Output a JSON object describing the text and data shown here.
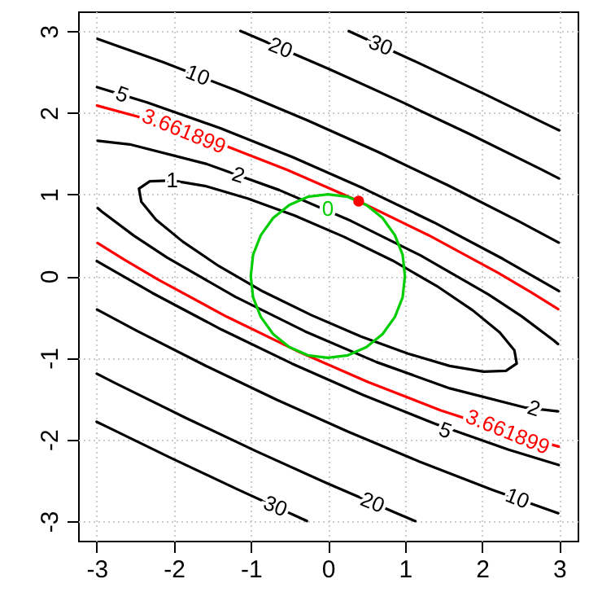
{
  "chart_data": {
    "type": "line",
    "xlim": [
      -3.24,
      3.24
    ],
    "ylim": [
      -3.24,
      3.24
    ],
    "xticks": [
      -3,
      -2,
      -1,
      0,
      1,
      2,
      3
    ],
    "yticks": [
      -3,
      -2,
      -1,
      0,
      1,
      2,
      3
    ],
    "grid": true,
    "series": [
      {
        "name": "30",
        "color": "#000000",
        "x": [
          0.272,
          1.145,
          2.058,
          2.876,
          3.0
        ],
        "values": [
          2.998,
          2.623,
          2.217,
          1.841,
          1.784
        ]
      },
      {
        "name": "30",
        "color": "#000000",
        "x": [
          -0.272,
          -1.145,
          -2.058,
          -2.876,
          -3.0
        ],
        "values": [
          -2.998,
          -2.623,
          -2.217,
          -1.841,
          -1.784
        ]
      },
      {
        "name": "20",
        "color": "#000000",
        "x": [
          -1.135,
          -0.911,
          0.015,
          0.935,
          1.848,
          2.755,
          2.998
        ],
        "values": [
          3.0,
          2.912,
          2.534,
          2.142,
          1.734,
          1.312,
          1.195
        ]
      },
      {
        "name": "20",
        "color": "#000000",
        "x": [
          1.135,
          0.911,
          -0.015,
          -0.935,
          -1.848,
          -2.755,
          -2.998
        ],
        "values": [
          -3.0,
          -2.912,
          -2.534,
          -2.142,
          -1.734,
          -1.312,
          -1.195
        ]
      },
      {
        "name": "10",
        "color": "#000000",
        "x": [
          -2.988,
          -2.132,
          -1.191,
          -0.26,
          0.661,
          1.573,
          2.475,
          2.994
        ],
        "values": [
          2.904,
          2.616,
          2.272,
          1.904,
          1.515,
          1.104,
          0.672,
          0.41
        ]
      },
      {
        "name": "10",
        "color": "#000000",
        "x": [
          2.988,
          2.132,
          1.191,
          0.26,
          -0.661,
          -1.573,
          -2.475,
          -2.994
        ],
        "values": [
          -2.904,
          -2.616,
          -2.272,
          -1.904,
          -1.515,
          -1.104,
          -0.672,
          -0.41
        ]
      },
      {
        "name": "5",
        "color": "#000000",
        "x": [
          -2.995,
          -2.346,
          -1.393,
          -0.456,
          0.467,
          1.378,
          2.273,
          2.892,
          2.997
        ],
        "values": [
          2.313,
          2.126,
          1.809,
          1.456,
          1.071,
          0.656,
          0.209,
          -0.125,
          -0.184
        ]
      },
      {
        "name": "5",
        "color": "#000000",
        "x": [
          2.995,
          2.346,
          1.393,
          0.456,
          -0.467,
          -1.378,
          -2.273,
          -2.892,
          -2.997
        ],
        "values": [
          -2.313,
          -2.126,
          -1.809,
          -1.456,
          -1.071,
          -0.656,
          -0.209,
          0.125,
          0.184
        ]
      },
      {
        "name": "3.661899",
        "color": "#ff0000",
        "x": [
          -2.995,
          -2.426,
          -1.465,
          -0.524,
          0.4,
          1.309,
          2.201,
          2.64,
          2.988
        ],
        "values": [
          2.087,
          1.942,
          1.644,
          1.299,
          0.9165,
          0.499,
          0.044,
          -0.2,
          -0.405
        ]
      },
      {
        "name": "3.661899",
        "color": "#ff0000",
        "x": [
          2.995,
          2.426,
          1.465,
          0.524,
          -0.4,
          -1.309,
          -2.201,
          -2.64,
          -2.988
        ],
        "values": [
          -2.087,
          -1.942,
          -1.644,
          -1.299,
          -0.9165,
          -0.499,
          -0.044,
          0.2,
          0.405
        ]
      },
      {
        "name": "2",
        "color": "#000000",
        "x": [
          -2.987,
          -2.57,
          -1.582,
          -0.631,
          0.296,
          1.202,
          2.084,
          2.513,
          2.93,
          2.986
        ],
        "values": [
          1.656,
          1.612,
          1.375,
          1.053,
          0.677,
          0.253,
          -0.225,
          -0.492,
          -0.788,
          -0.833
        ]
      },
      {
        "name": "2",
        "color": "#000000",
        "x": [
          2.987,
          2.57,
          1.582,
          0.631,
          -0.296,
          -1.202,
          -2.084,
          -2.513,
          -2.93,
          -2.986
        ],
        "values": [
          -1.656,
          -1.612,
          -1.375,
          -1.053,
          -0.677,
          -0.253,
          0.225,
          0.492,
          0.788,
          0.833
        ]
      },
      {
        "name": "1",
        "color": "#000000",
        "x": [
          -2.45,
          -2.31,
          -2.02,
          -1.58,
          -1.04,
          -0.43,
          0.21,
          0.84,
          1.41,
          1.88,
          2.23,
          2.42,
          2.45,
          null,
          -2.45,
          -2.42,
          -2.23,
          -1.88,
          -1.41,
          -0.84,
          -0.21,
          0.43,
          1.04,
          1.58,
          2.02,
          2.31,
          2.45
        ],
        "values": [
          1.07,
          1.16,
          1.17,
          1.1,
          0.95,
          0.74,
          0.48,
          0.19,
          -0.12,
          -0.42,
          -0.69,
          -0.91,
          -1.07,
          null,
          1.07,
          0.91,
          0.69,
          0.42,
          0.12,
          -0.19,
          -0.48,
          -0.74,
          -0.95,
          -1.1,
          -1.17,
          -1.16,
          -1.07
        ]
      },
      {
        "name": "0",
        "color": "#00cd00",
        "x": [
          -1,
          -0.97,
          -0.87,
          -0.71,
          -0.5,
          -0.26,
          0,
          0.26,
          0.5,
          0.71,
          0.87,
          0.97,
          1,
          null,
          -1,
          -0.97,
          -0.87,
          -0.71,
          -0.5,
          -0.26,
          0,
          0.26,
          0.5,
          0.71,
          0.87,
          0.97,
          1
        ],
        "values": [
          0,
          0.26,
          0.5,
          0.71,
          0.87,
          0.97,
          1,
          0.97,
          0.87,
          0.71,
          0.5,
          0.26,
          0,
          null,
          0,
          -0.26,
          -0.5,
          -0.71,
          -0.87,
          -0.97,
          -1,
          -0.97,
          -0.87,
          -0.71,
          -0.5,
          -0.26,
          0
        ]
      },
      {
        "type": "scatter",
        "color": "#ff0000",
        "marker": "circle",
        "x": [
          0.4
        ],
        "values": [
          0.9165
        ]
      }
    ]
  }
}
